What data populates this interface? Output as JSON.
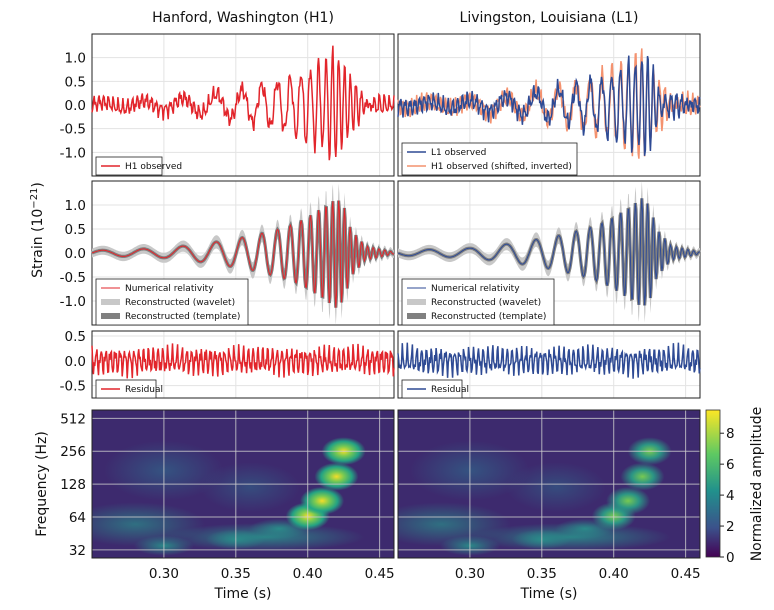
{
  "columns": [
    "Hanford, Washington (H1)",
    "Livingston, Louisiana (L1)"
  ],
  "ylabel_strain": "Strain (10",
  "ylabel_strain_exp": "−21",
  "ylabel_strain_close": ")",
  "ylabel_freq": "Frequency (Hz)",
  "xlabel": "Time (s)",
  "colorbar_label": "Normalized amplitude",
  "colors": {
    "h1": "#e2252b",
    "l1": "#2e4a94",
    "h1_shifted": "#f4926f",
    "wavelet": "#c8c8c8",
    "template": "#808080"
  },
  "chart_data": [
    {
      "type": "line",
      "panel": "observed",
      "ylim": [
        -1.5,
        1.5
      ],
      "yticks": [
        "1.0",
        "0.5",
        "0.0",
        "-0.5",
        "-1.0"
      ],
      "xlim": [
        0.25,
        0.46
      ],
      "series_h1": [
        {
          "name": "H1 observed",
          "x": [
            0.25,
            0.26,
            0.27,
            0.28,
            0.29,
            0.3,
            0.31,
            0.32,
            0.33,
            0.34,
            0.35,
            0.36,
            0.37,
            0.38,
            0.39,
            0.4,
            0.405,
            0.41,
            0.415,
            0.42,
            0.425,
            0.43,
            0.435,
            0.44,
            0.45,
            0.46
          ],
          "y": [
            0.0,
            0.1,
            -0.2,
            0.15,
            -0.1,
            0.1,
            -0.15,
            0.05,
            0.1,
            -0.1,
            0.0,
            0.4,
            -0.4,
            0.5,
            -0.5,
            0.7,
            1.1,
            -0.8,
            0.9,
            -1.0,
            0.8,
            -0.4,
            0.2,
            -0.1,
            0.1,
            0.0
          ]
        }
      ],
      "series_l1": [
        {
          "name": "L1 observed",
          "x": [
            0.25,
            0.26,
            0.27,
            0.28,
            0.29,
            0.3,
            0.31,
            0.32,
            0.33,
            0.34,
            0.35,
            0.36,
            0.37,
            0.38,
            0.39,
            0.4,
            0.405,
            0.41,
            0.415,
            0.42,
            0.425,
            0.43,
            0.44,
            0.45,
            0.46
          ],
          "y": [
            -0.1,
            0.2,
            -0.3,
            0.4,
            -0.2,
            0.3,
            -0.3,
            0.1,
            0.3,
            -0.2,
            0.4,
            -0.6,
            0.6,
            -0.7,
            0.7,
            -0.6,
            0.8,
            -0.9,
            1.0,
            -0.8,
            0.5,
            -0.3,
            0.2,
            -0.1,
            0.0
          ]
        },
        {
          "name": "H1 observed (shifted, inverted)",
          "x": [
            0.25,
            0.26,
            0.27,
            0.28,
            0.29,
            0.3,
            0.31,
            0.32,
            0.33,
            0.34,
            0.35,
            0.36,
            0.37,
            0.38,
            0.39,
            0.4,
            0.405,
            0.41,
            0.415,
            0.42,
            0.425,
            0.43,
            0.44,
            0.45,
            0.46
          ],
          "y": [
            0.1,
            -0.1,
            0.3,
            -0.2,
            0.2,
            -0.1,
            0.2,
            0.0,
            -0.2,
            0.1,
            -0.3,
            0.5,
            -0.5,
            0.6,
            -0.7,
            0.9,
            -1.0,
            0.9,
            -1.1,
            0.8,
            -0.6,
            0.3,
            -0.2,
            0.2,
            0.1
          ]
        }
      ]
    },
    {
      "type": "line",
      "panel": "model",
      "ylim": [
        -1.5,
        1.5
      ],
      "yticks": [
        "1.0",
        "0.5",
        "0.0",
        "-0.5",
        "-1.0"
      ],
      "xlim": [
        0.25,
        0.46
      ],
      "legend_h1": [
        "Numerical relativity",
        "Reconstructed (wavelet)",
        "Reconstructed (template)"
      ],
      "legend_l1": [
        "Numerical relativity",
        "Reconstructed (wavelet)",
        "Reconstructed (template)"
      ],
      "envelope": {
        "x": [
          0.25,
          0.3,
          0.33,
          0.36,
          0.38,
          0.39,
          0.4,
          0.41,
          0.415,
          0.42,
          0.425,
          0.43,
          0.44,
          0.46
        ],
        "amplitude": [
          0.05,
          0.1,
          0.2,
          0.35,
          0.5,
          0.6,
          0.75,
          0.95,
          1.05,
          1.15,
          1.0,
          0.5,
          0.15,
          0.02
        ]
      }
    },
    {
      "type": "line",
      "panel": "residual",
      "ylim": [
        -0.75,
        0.6
      ],
      "yticks": [
        "0.5",
        "0.0",
        "-0.5"
      ],
      "xlim": [
        0.25,
        0.46
      ],
      "legend_h1": "Residual",
      "legend_l1": "Residual",
      "amplitude": 0.35
    },
    {
      "type": "heatmap",
      "panel": "spectrogram",
      "ylabel": "Frequency (Hz)",
      "yticks": [
        "512",
        "256",
        "128",
        "64",
        "32"
      ],
      "xticks": [
        "0.30",
        "0.35",
        "0.40",
        "0.45"
      ],
      "xlim": [
        0.25,
        0.46
      ],
      "colorbar_ticks": [
        "8",
        "6",
        "4",
        "2",
        "0"
      ],
      "colorbar_range": [
        0,
        9.5
      ],
      "chirp_track": {
        "t": [
          0.3,
          0.35,
          0.38,
          0.4,
          0.41,
          0.42,
          0.425
        ],
        "freq": [
          35,
          40,
          50,
          65,
          90,
          150,
          256
        ]
      }
    }
  ]
}
